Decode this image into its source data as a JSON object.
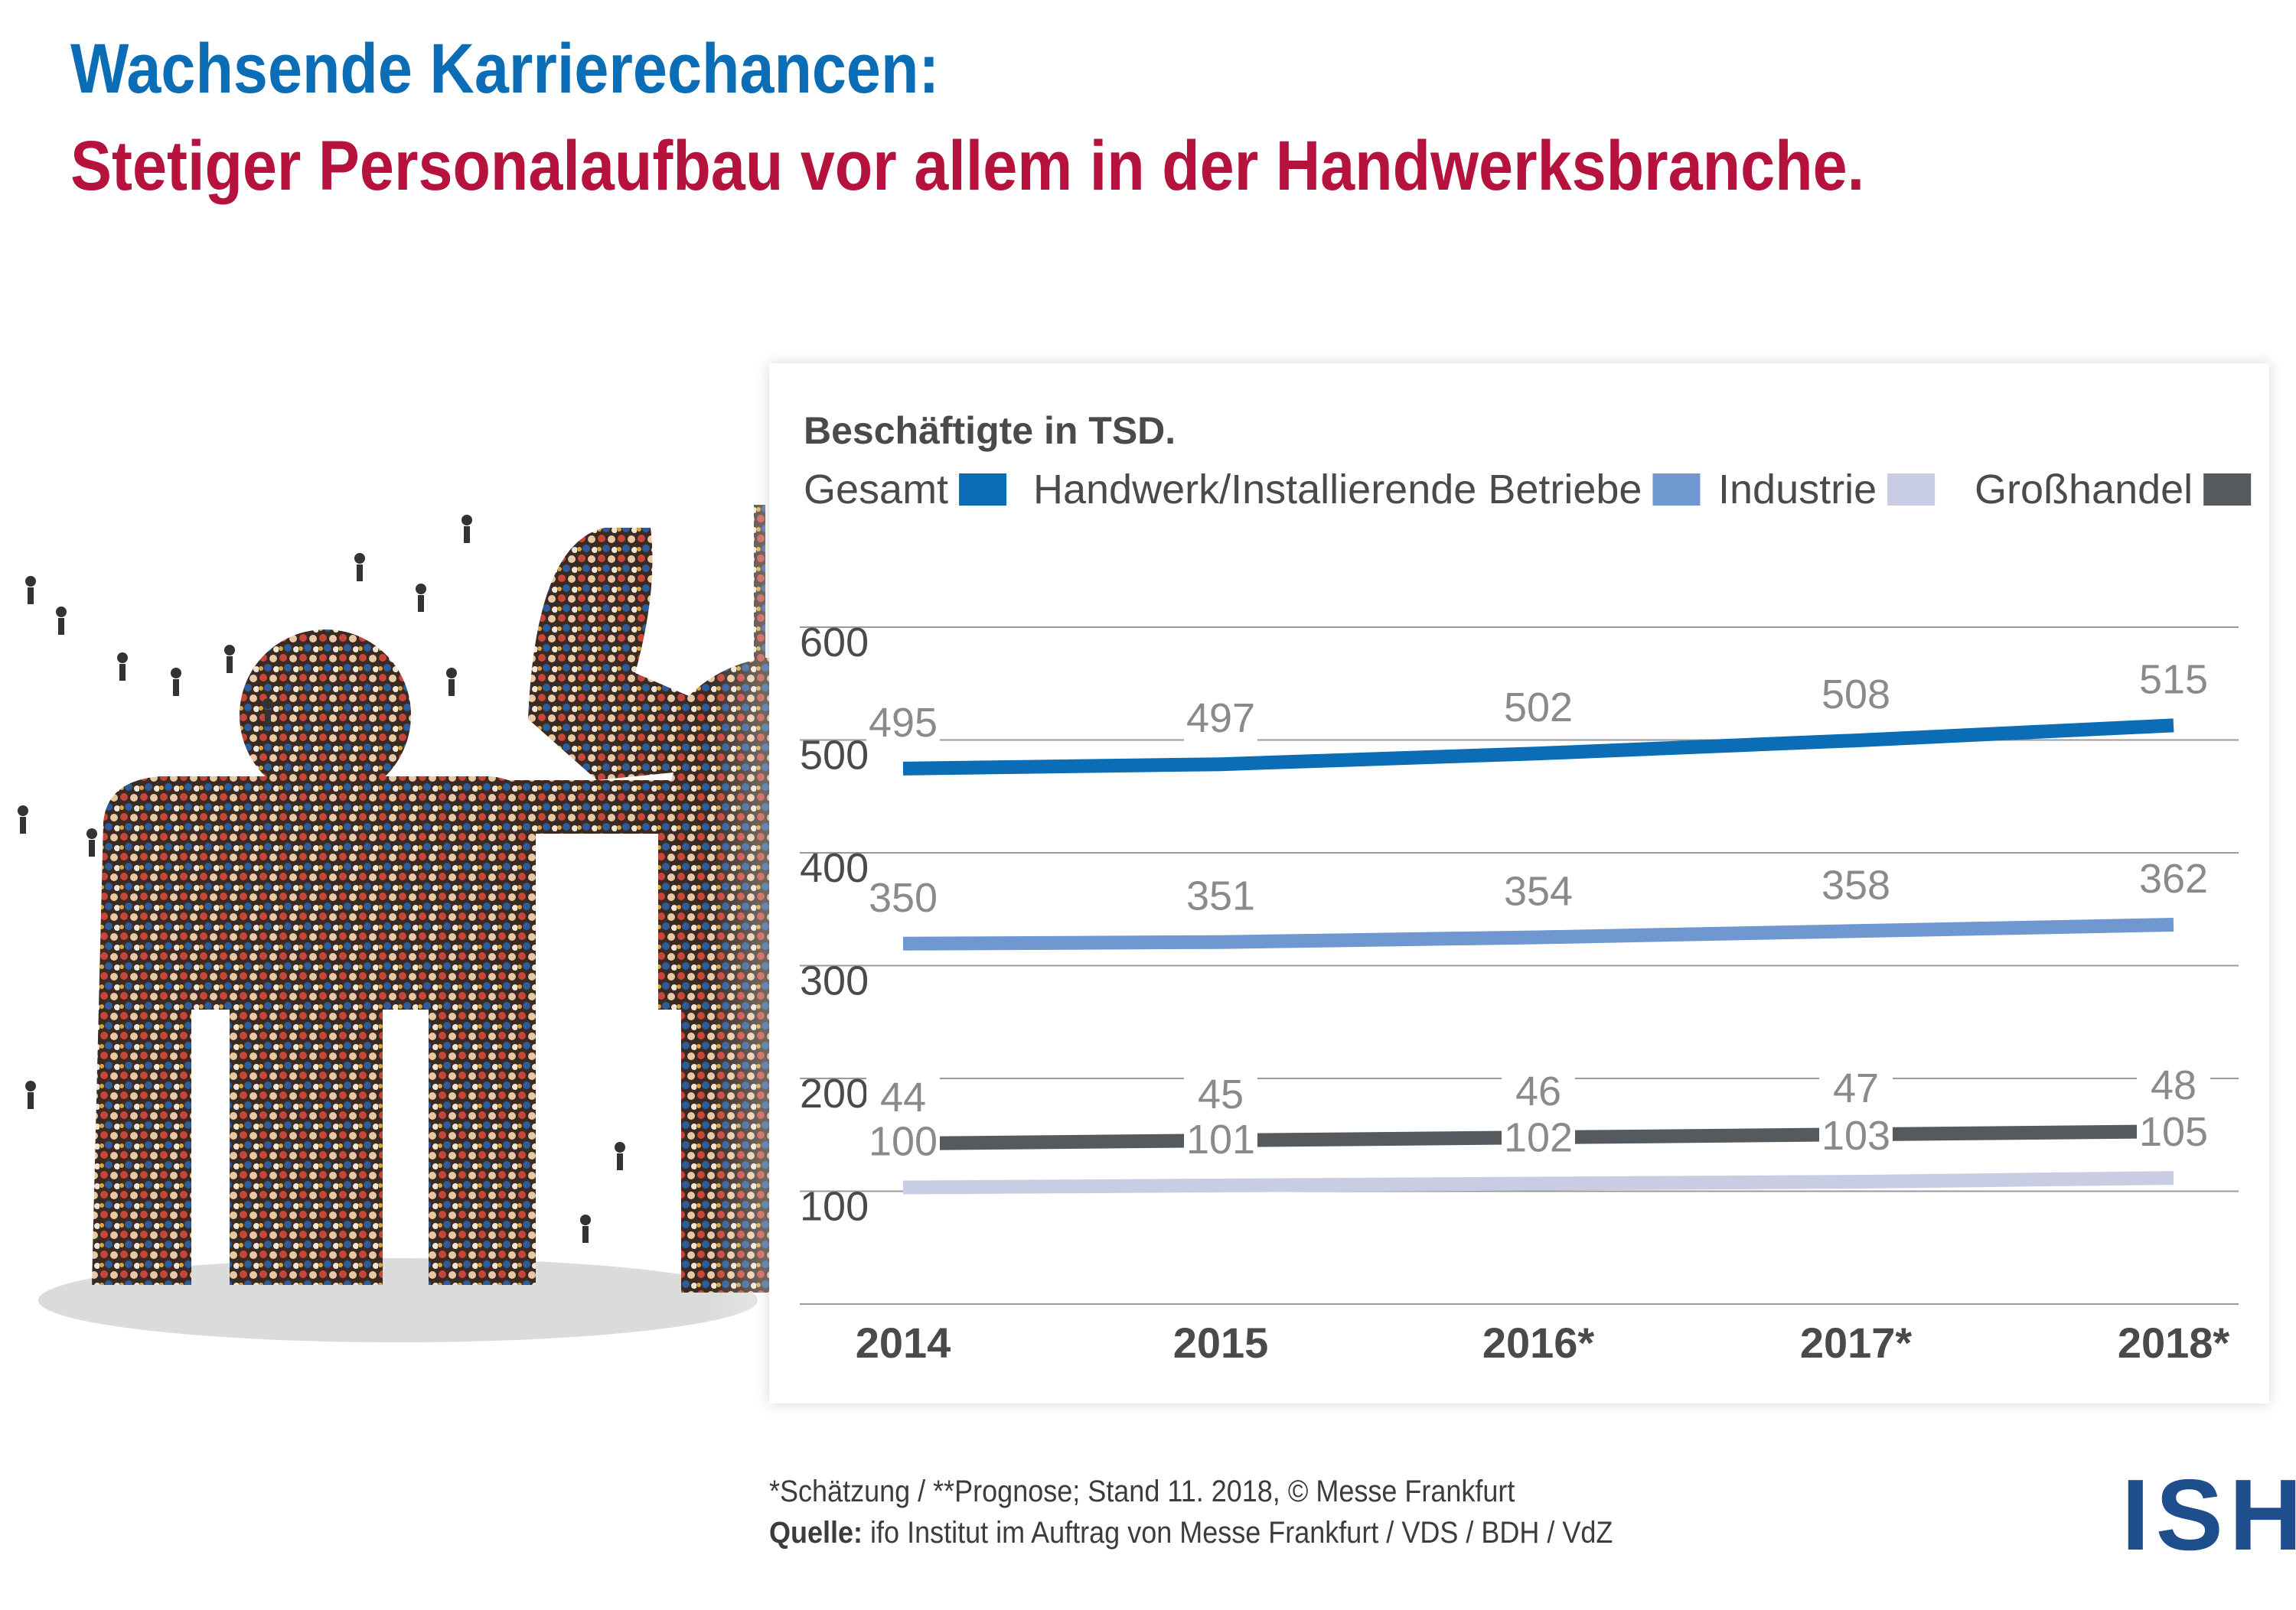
{
  "title": "Wachsende Karrierechancen:",
  "subtitle": "Stetiger Personalaufbau vor allem in der Handwerksbranche.",
  "footnote": "*Schätzung / **Prognose; Stand 11. 2018, © Messe Frankfurt",
  "source_label": "Quelle:",
  "source_text": "ifo Institut im Auftrag von Messe Frankfurt / VDS / BDH / VdZ",
  "logo": "ISH",
  "colors": {
    "title": "#0a6db5",
    "subtitle": "#b5123e",
    "gesamt": "#0a6db5",
    "handwerk": "#6f98d0",
    "industrie": "#c9cde3",
    "grosshandel": "#545a5e"
  },
  "chart_data": {
    "type": "line",
    "ylabel": "Beschäftigte in TSD.",
    "categories": [
      "2014",
      "2015",
      "2016*",
      "2017*",
      "2018*"
    ],
    "yticks": [
      100,
      200,
      300,
      400,
      500,
      600
    ],
    "ylim": [
      0,
      600
    ],
    "grid": true,
    "legend_position": "top",
    "series": [
      {
        "name": "Gesamt",
        "key": "gesamt",
        "values": [
          495,
          497,
          502,
          508,
          515
        ]
      },
      {
        "name": "Handwerk/Installierende Betriebe",
        "key": "handwerk",
        "values": [
          350,
          351,
          354,
          358,
          362
        ]
      },
      {
        "name": "Industrie",
        "key": "industrie",
        "values": [
          100,
          101,
          102,
          103,
          105
        ]
      },
      {
        "name": "Großhandel",
        "key": "grosshandel",
        "values": [
          44,
          45,
          46,
          47,
          48
        ]
      }
    ]
  }
}
